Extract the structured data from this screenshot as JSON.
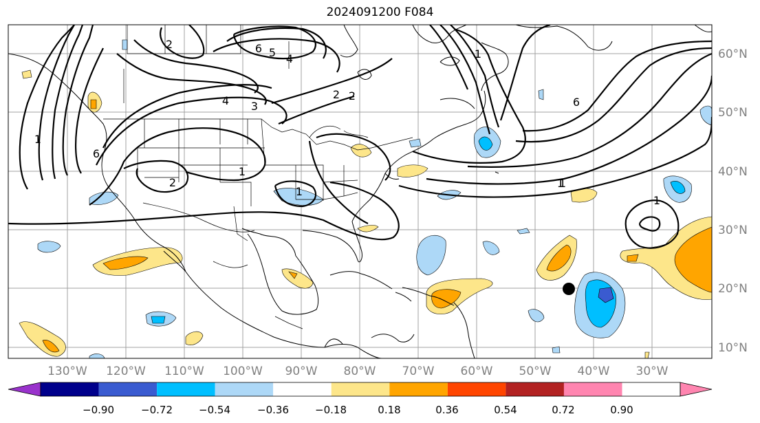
{
  "title": "2024091200 F084",
  "lon_labels": [
    "130°W",
    "120°W",
    "110°W",
    "100°W",
    "90°W",
    "80°W",
    "70°W",
    "60°W",
    "50°W",
    "40°W",
    "30°W"
  ],
  "lat_labels": [
    "60°N",
    "50°N",
    "40°N",
    "30°N",
    "20°N",
    "10°N"
  ],
  "colorbar": {
    "ticks": [
      "−0.90",
      "−0.72",
      "−0.54",
      "−0.36",
      "−0.18",
      "0.18",
      "0.36",
      "0.54",
      "0.72",
      "0.90"
    ],
    "colors": [
      "#9932cc",
      "#00008b",
      "#3a5bd0",
      "#00bfff",
      "#add8f7",
      "#ffffff",
      "#fde68a",
      "#ffa500",
      "#ff4500",
      "#b22222",
      "#ff85b0"
    ]
  },
  "contour_labels": [
    "1",
    "2",
    "4",
    "3",
    "6",
    "5",
    "4",
    "2",
    "6",
    "1",
    "1",
    "1",
    "2",
    "1",
    "1",
    "2",
    "6",
    "1"
  ],
  "colors": {
    "line": "#000000",
    "grid": "#a0a0a0",
    "axis_text": "#808080"
  },
  "storm_marker": "filled-black-dot"
}
